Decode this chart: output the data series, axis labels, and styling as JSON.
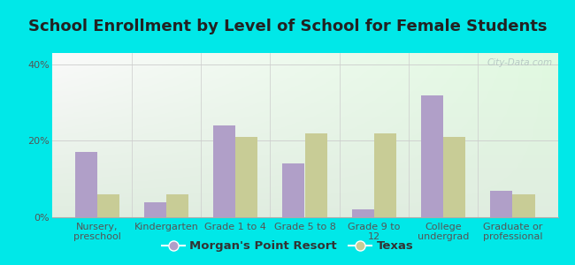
{
  "title": "School Enrollment by Level of School for Female Students",
  "categories": [
    "Nursery,\npreschool",
    "Kindergarten",
    "Grade 1 to 4",
    "Grade 5 to 8",
    "Grade 9 to\n12",
    "College\nundergrad",
    "Graduate or\nprofessional"
  ],
  "morgan": [
    17,
    4,
    24,
    14,
    2,
    32,
    7
  ],
  "texas": [
    6,
    6,
    21,
    22,
    22,
    21,
    6
  ],
  "morgan_color": "#b09fc8",
  "texas_color": "#c8cc96",
  "background_outer": "#00e8e8",
  "yticks": [
    0,
    20,
    40
  ],
  "ylim": [
    0,
    43
  ],
  "legend_morgan": "Morgan's Point Resort",
  "legend_texas": "Texas",
  "title_fontsize": 13,
  "tick_fontsize": 8,
  "legend_fontsize": 9.5,
  "watermark": "City-Data.com"
}
